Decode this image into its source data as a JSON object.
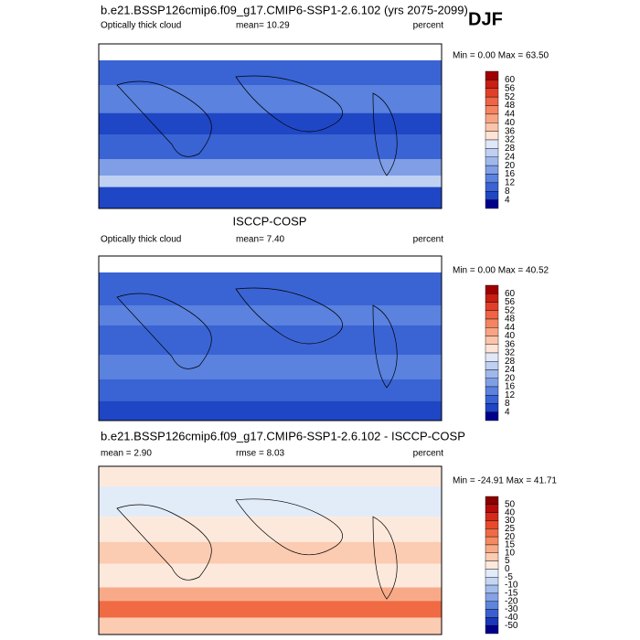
{
  "title": "b.e21.BSSP126cmip6.f09_g17.CMIP6-SSP1-2.6.102 (yrs 2075-2099)",
  "season": "DJF",
  "panels": [
    {
      "header": null,
      "left": "Optically thick cloud",
      "middle": "mean=  10.29",
      "units": "percent",
      "minmax": "Min =  0.00 Max = 63.50",
      "levels": [
        60,
        56,
        52,
        48,
        44,
        40,
        36,
        32,
        28,
        24,
        20,
        16,
        12,
        8,
        4
      ],
      "colors": [
        "#a00000",
        "#c81e14",
        "#e0402a",
        "#ee6444",
        "#f48462",
        "#f8a484",
        "#fbc4aa",
        "#fde4d6",
        "#dfe7f8",
        "#bfd0f2",
        "#9fb8ec",
        "#7f9ee6",
        "#5a82de",
        "#3a64d4",
        "#1f46c4",
        "#00008c"
      ]
    },
    {
      "header": "ISCCP-COSP",
      "left": "Optically thick cloud",
      "middle": "mean=  7.40",
      "units": "percent",
      "minmax": "Min =  0.00 Max = 40.52",
      "levels": [
        60,
        56,
        52,
        48,
        44,
        40,
        36,
        32,
        28,
        24,
        20,
        16,
        12,
        8,
        4
      ],
      "colors": [
        "#a00000",
        "#c81e14",
        "#e0402a",
        "#ee6444",
        "#f48462",
        "#f8a484",
        "#fbc4aa",
        "#fde4d6",
        "#dfe7f8",
        "#bfd0f2",
        "#9fb8ec",
        "#7f9ee6",
        "#5a82de",
        "#3a64d4",
        "#1f46c4",
        "#00008c"
      ]
    },
    {
      "header": "b.e21.BSSP126cmip6.f09_g17.CMIP6-SSP1-2.6.102 - ISCCP-COSP",
      "left": "mean =  2.90",
      "middle": "rmse =  8.03",
      "units": "percent",
      "minmax": "Min = -24.91 Max = 41.71",
      "levels": [
        50,
        40,
        30,
        25,
        20,
        15,
        10,
        5,
        0,
        -5,
        -10,
        -15,
        -20,
        -30,
        -40,
        -50
      ],
      "colors": [
        "#8c0000",
        "#b40c0c",
        "#d42a1a",
        "#e84a2c",
        "#f06a44",
        "#f48a62",
        "#f8aa88",
        "#fbcbb2",
        "#fde9dc",
        "#e2ebf8",
        "#c4d6f2",
        "#a4bcec",
        "#84a2e6",
        "#5e84dc",
        "#3a60d0",
        "#1a38b8",
        "#00008c"
      ]
    }
  ]
}
